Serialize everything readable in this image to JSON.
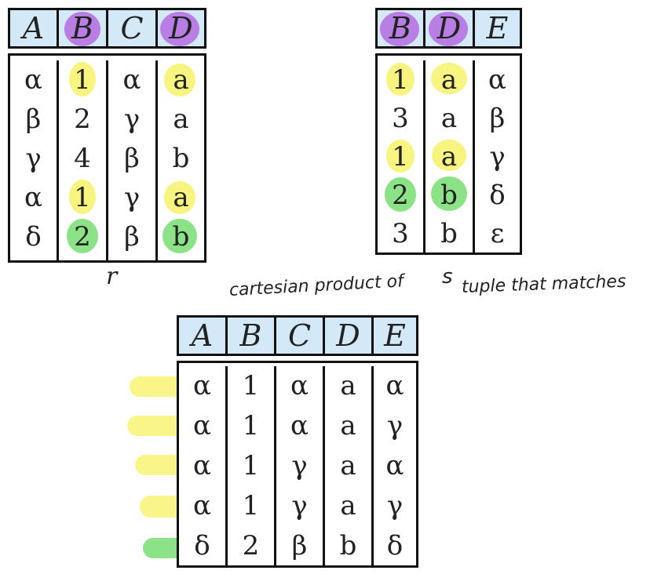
{
  "table_r": {
    "label": "r",
    "headers": [
      "A",
      "B",
      "C",
      "D"
    ],
    "rows": [
      [
        "α",
        "1",
        "α",
        "a"
      ],
      [
        "β",
        "2",
        "γ",
        "a"
      ],
      [
        "γ",
        "4",
        "β",
        "b"
      ],
      [
        "α",
        "1",
        "γ",
        "a"
      ],
      [
        "δ",
        "2",
        "β",
        "b"
      ]
    ]
  },
  "table_s": {
    "headers": [
      "B",
      "D",
      "E"
    ],
    "rows": [
      [
        "1",
        "a",
        "α"
      ],
      [
        "3",
        "a",
        "β"
      ],
      [
        "1",
        "a",
        "γ"
      ],
      [
        "2",
        "b",
        "δ"
      ],
      [
        "3",
        "b",
        "ε"
      ]
    ]
  },
  "annotation": {
    "text_before": "cartesian product of",
    "s_label": "s",
    "text_after": "tuple that matches"
  },
  "table_result": {
    "headers": [
      "A",
      "B",
      "C",
      "D",
      "E"
    ],
    "rows": [
      [
        "α",
        "1",
        "α",
        "a",
        "α"
      ],
      [
        "α",
        "1",
        "α",
        "a",
        "γ"
      ],
      [
        "α",
        "1",
        "γ",
        "a",
        "α"
      ],
      [
        "α",
        "1",
        "γ",
        "a",
        "γ"
      ],
      [
        "δ",
        "2",
        "β",
        "b",
        "δ"
      ]
    ]
  },
  "colors": {
    "header_bg": "#d3e9f8",
    "highlight_yellow": "#f7f26a",
    "highlight_green": "#7fe07a",
    "highlight_purple": "#b36be0"
  }
}
